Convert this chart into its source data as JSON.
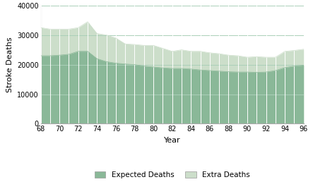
{
  "years": [
    68,
    69,
    70,
    71,
    72,
    73,
    74,
    75,
    76,
    77,
    78,
    79,
    80,
    81,
    82,
    83,
    84,
    85,
    86,
    87,
    88,
    89,
    90,
    91,
    92,
    93,
    94,
    95,
    96
  ],
  "expected_deaths": [
    23000,
    23000,
    23200,
    23500,
    24500,
    24500,
    22000,
    21000,
    20500,
    20200,
    20000,
    19500,
    19200,
    18900,
    18700,
    18700,
    18500,
    18200,
    18000,
    17800,
    17600,
    17500,
    17500,
    17400,
    17500,
    18000,
    19000,
    19500,
    19800
  ],
  "total_deaths": [
    32500,
    32000,
    32000,
    32000,
    32500,
    34500,
    30500,
    30000,
    29000,
    27000,
    26800,
    26500,
    26500,
    25500,
    24500,
    25000,
    24500,
    24500,
    24000,
    23700,
    23200,
    23000,
    22500,
    22700,
    22500,
    22500,
    24500,
    24800,
    25200
  ],
  "expected_color": "#8ab898",
  "extra_color": "#ccdeca",
  "background_color": "#ffffff",
  "grid_color_h": "#aacfb8",
  "grid_color_v": "#ffffff",
  "xlabel": "Year",
  "ylabel": "Stroke Deaths",
  "ylim": [
    0,
    40000
  ],
  "yticks": [
    0,
    10000,
    20000,
    30000,
    40000
  ],
  "xticks": [
    68,
    70,
    72,
    74,
    76,
    78,
    80,
    82,
    84,
    86,
    88,
    90,
    92,
    94,
    96
  ],
  "legend_expected": "Expected Deaths",
  "legend_extra": "Extra Deaths",
  "figsize": [
    4.43,
    2.58
  ],
  "dpi": 100
}
